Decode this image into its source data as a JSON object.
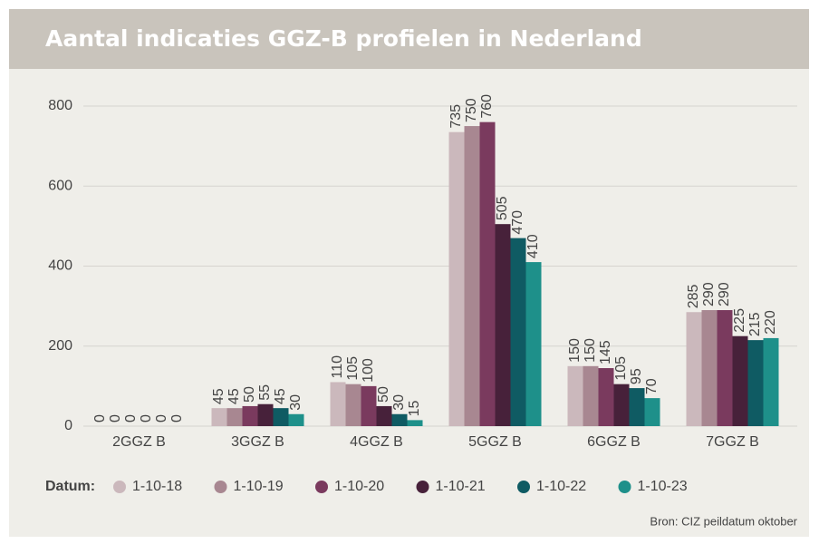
{
  "chart_data": {
    "type": "bar",
    "title": "Aantal indicaties GGZ-B profielen in Nederland",
    "categories": [
      "2GGZ B",
      "3GGZ B",
      "4GGZ B",
      "5GGZ B",
      "6GGZ B",
      "7GGZ B"
    ],
    "legend_title": "Datum:",
    "series": [
      {
        "name": "1-10-18",
        "color": "#cbb8bc",
        "values": [
          0,
          45,
          110,
          735,
          150,
          285
        ]
      },
      {
        "name": "1-10-19",
        "color": "#a88791",
        "values": [
          0,
          45,
          105,
          750,
          150,
          290
        ]
      },
      {
        "name": "1-10-20",
        "color": "#7a3a5e",
        "values": [
          0,
          50,
          100,
          760,
          145,
          290
        ]
      },
      {
        "name": "1-10-21",
        "color": "#47213a",
        "values": [
          0,
          55,
          50,
          505,
          105,
          225
        ]
      },
      {
        "name": "1-10-22",
        "color": "#0f5b63",
        "values": [
          0,
          45,
          30,
          470,
          95,
          215
        ]
      },
      {
        "name": "1-10-23",
        "color": "#1e908a",
        "values": [
          0,
          30,
          15,
          410,
          70,
          220
        ]
      }
    ],
    "ylim": [
      0,
      800
    ],
    "yticks": [
      0,
      200,
      400,
      600,
      800
    ],
    "grid": true,
    "source": "Bron: CIZ peildatum oktober"
  }
}
